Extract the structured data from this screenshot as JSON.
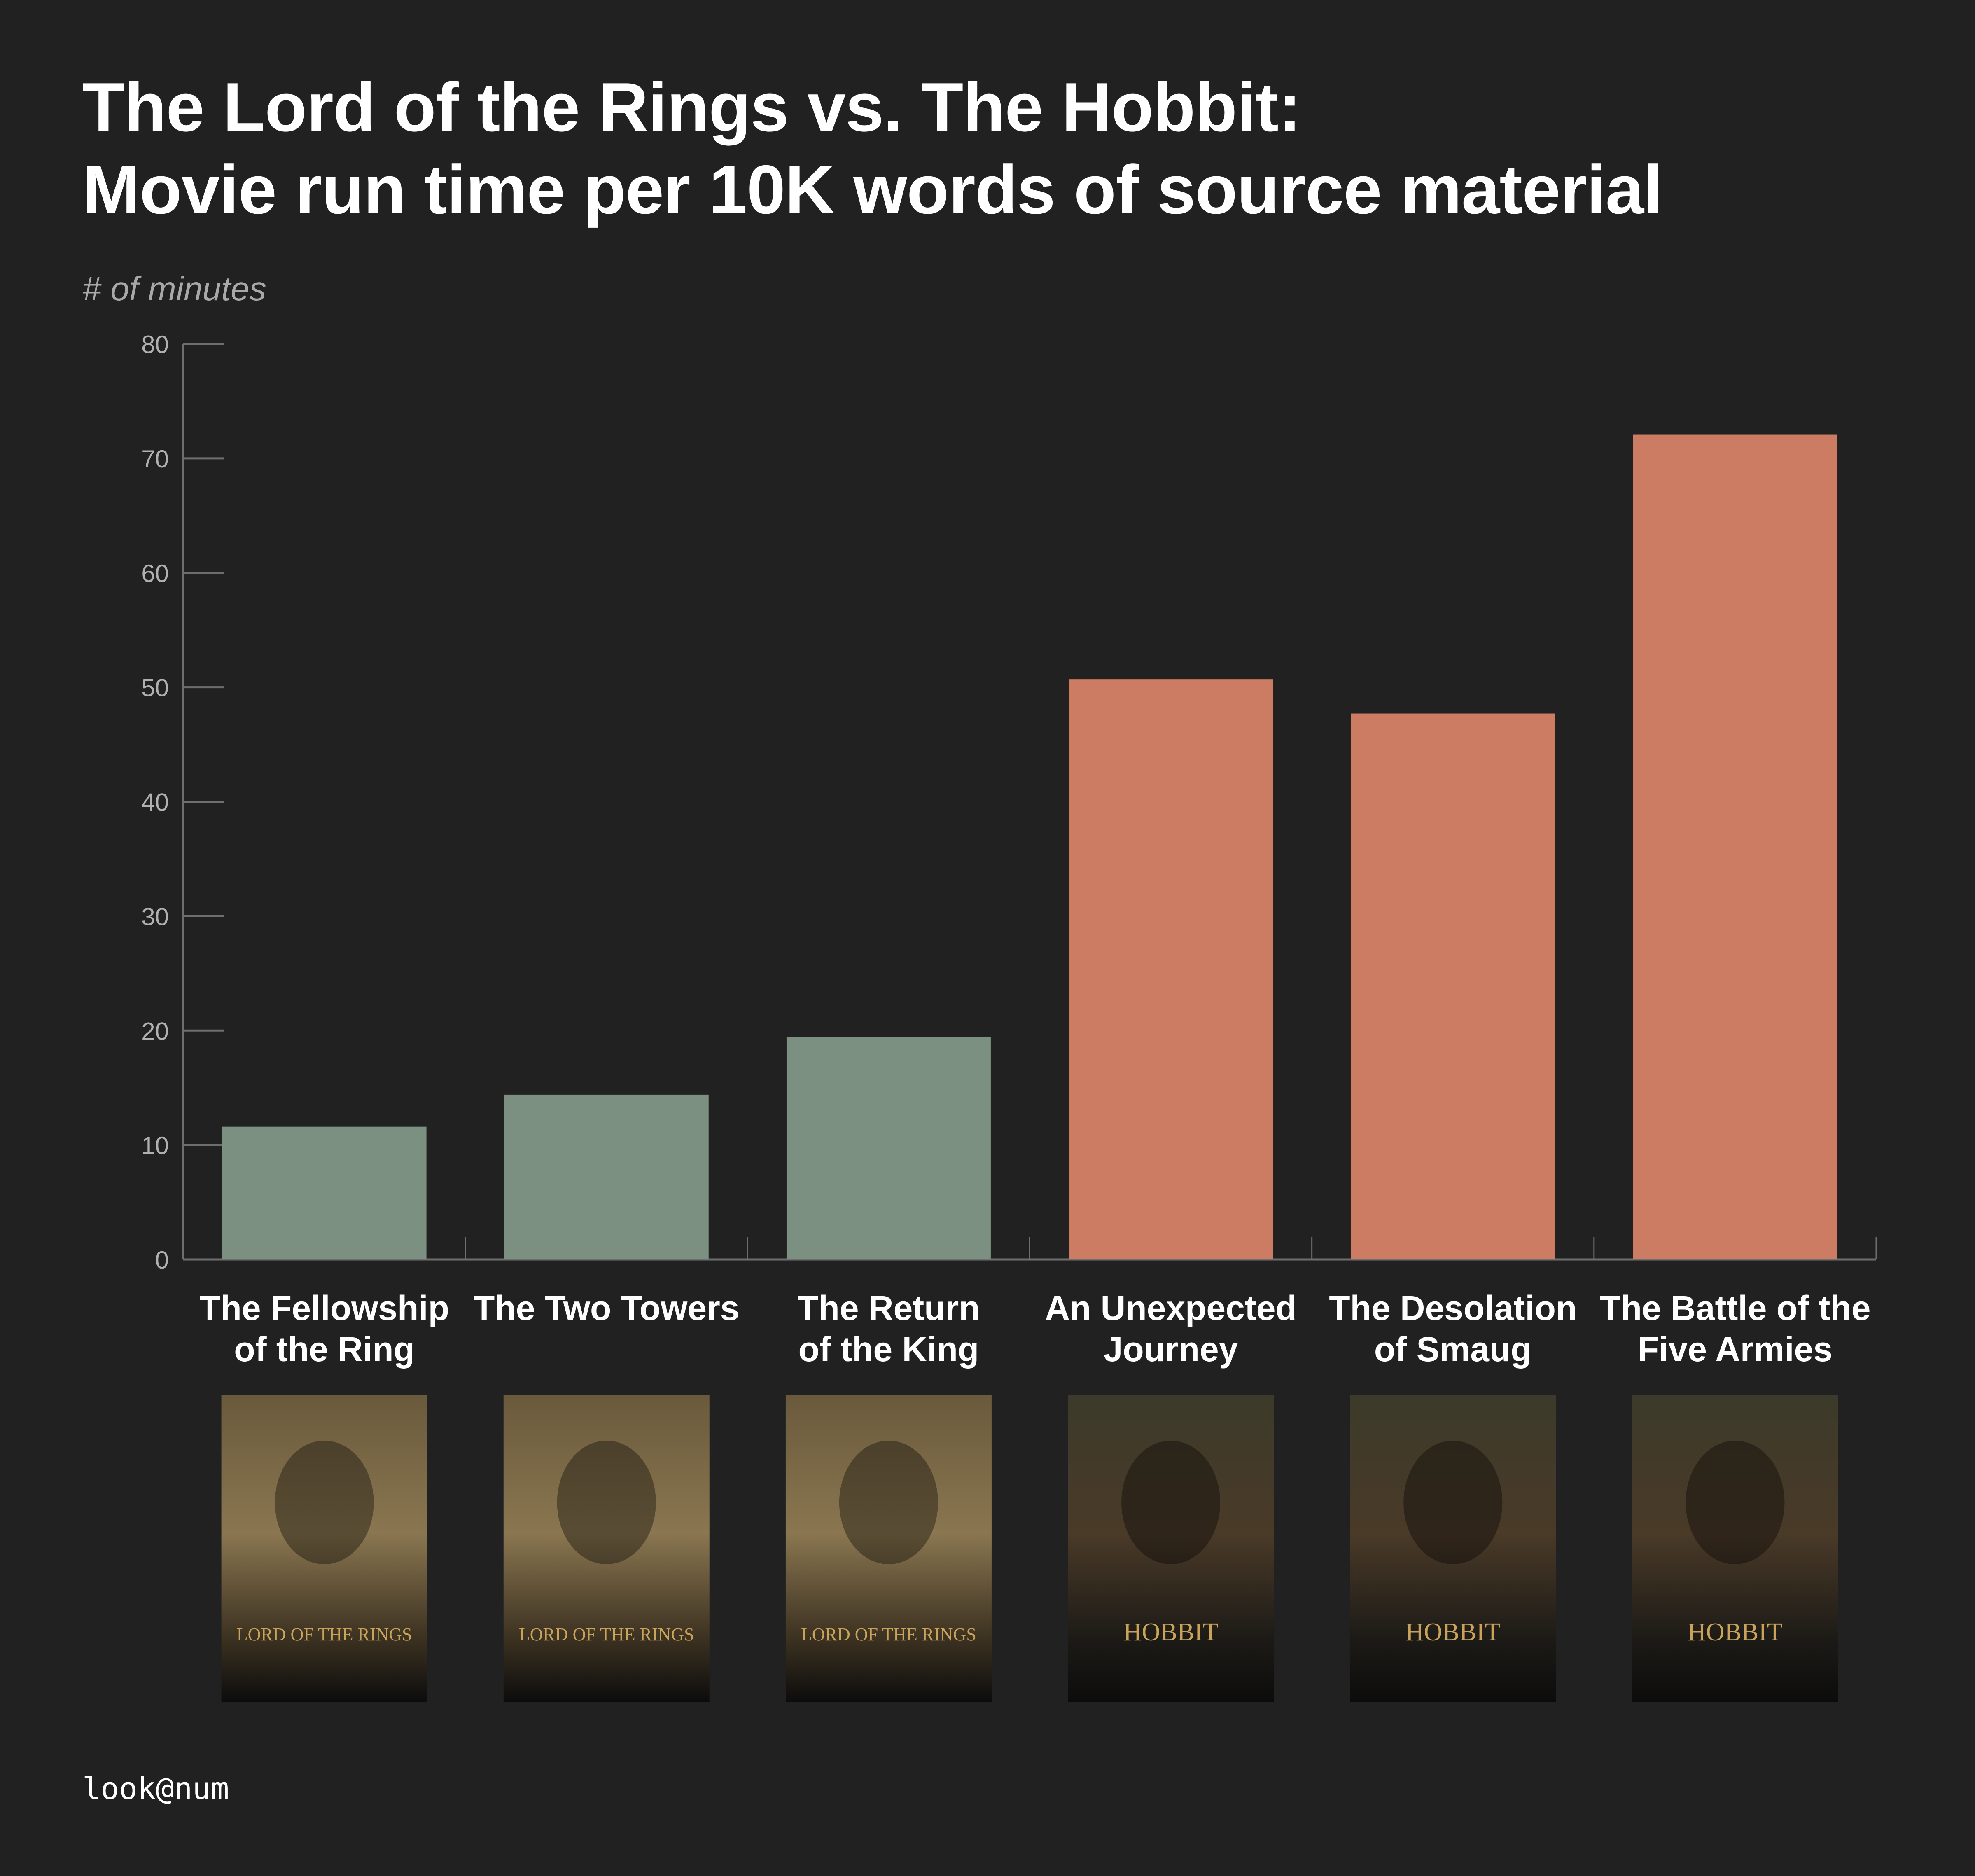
{
  "title_line1": "The Lord of the Rings vs. The Hobbit:",
  "title_line2": "Movie run time per 10K words of source material",
  "footer": "look@num",
  "colors": {
    "background": "#212121",
    "lotr": "#7b9080",
    "hobbit": "#cc7c63",
    "axis": "#6e6e6e",
    "tick_label": "#b0b0b0"
  },
  "chart_data": {
    "type": "bar",
    "title": "The Lord of the Rings vs. The Hobbit: Movie run time per 10K words of source material",
    "ylabel": "# of minutes",
    "xlabel": "",
    "ylim": [
      0,
      80
    ],
    "yticks": [
      0,
      10,
      20,
      30,
      40,
      50,
      60,
      70,
      80
    ],
    "grid": false,
    "categories": [
      [
        "The Fellowship",
        "of the Ring"
      ],
      [
        "The Two Towers"
      ],
      [
        "The Return",
        "of the King"
      ],
      [
        "An Unexpected",
        "Journey"
      ],
      [
        "The Desolation",
        "of Smaug"
      ],
      [
        "The Battle of the",
        "Five Armies"
      ]
    ],
    "values": [
      11.6,
      14.4,
      19.4,
      50.7,
      47.7,
      72.1
    ],
    "groups": [
      "lotr",
      "lotr",
      "lotr",
      "hobbit",
      "hobbit",
      "hobbit"
    ],
    "posters": [
      {
        "logo": "LORD OF THE RINGS",
        "icon": "fellowship-poster"
      },
      {
        "logo": "LORD OF THE RINGS",
        "icon": "two-towers-poster"
      },
      {
        "logo": "LORD OF THE RINGS",
        "icon": "return-of-the-king-poster"
      },
      {
        "logo": "HOBBIT",
        "icon": "unexpected-journey-poster"
      },
      {
        "logo": "HOBBIT",
        "icon": "desolation-of-smaug-poster"
      },
      {
        "logo": "HOBBIT",
        "icon": "battle-of-five-armies-poster"
      }
    ]
  }
}
